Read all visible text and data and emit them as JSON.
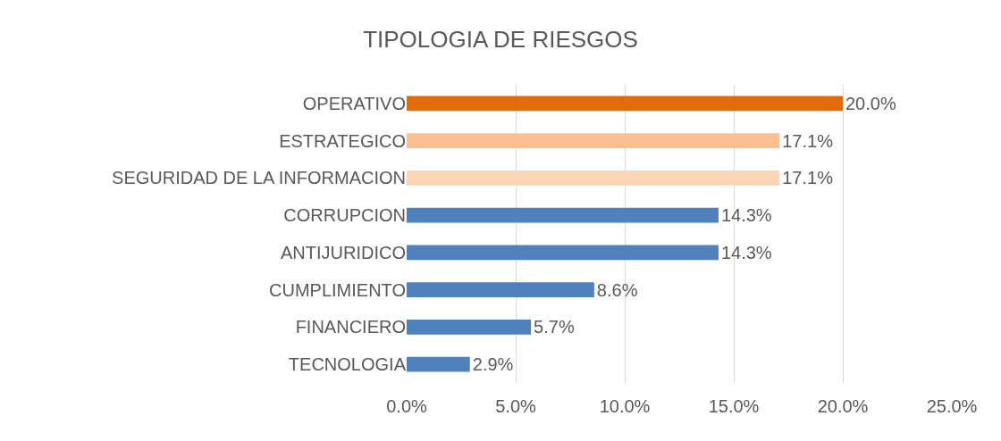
{
  "chart_data": {
    "type": "bar",
    "orientation": "horizontal",
    "title": "TIPOLOGIA DE RIESGOS",
    "categories": [
      "OPERATIVO",
      "ESTRATEGICO",
      "SEGURIDAD DE LA INFORMACION",
      "CORRUPCION",
      "ANTIJURIDICO",
      "CUMPLIMIENTO",
      "FINANCIERO",
      "TECNOLOGIA"
    ],
    "values": [
      20.0,
      17.1,
      17.1,
      14.3,
      14.3,
      8.6,
      5.7,
      2.9
    ],
    "colors": [
      "#e26b0a",
      "#fac090",
      "#fcd5b4",
      "#4f81bd",
      "#4f81bd",
      "#4f81bd",
      "#4f81bd",
      "#4f81bd"
    ],
    "value_labels": [
      "20.0%",
      "17.1%",
      "17.1%",
      "14.3%",
      "14.3%",
      "8.6%",
      "5.7%",
      "2.9%"
    ],
    "xlim": [
      0,
      25
    ],
    "xticks": [
      {
        "value": 0,
        "label": "0.0%"
      },
      {
        "value": 5,
        "label": "5.0%"
      },
      {
        "value": 10,
        "label": "10.0%"
      },
      {
        "value": 15,
        "label": "15.0%"
      },
      {
        "value": 20,
        "label": "20.0%"
      },
      {
        "value": 25,
        "label": "25.0%"
      }
    ],
    "grid": "x"
  }
}
